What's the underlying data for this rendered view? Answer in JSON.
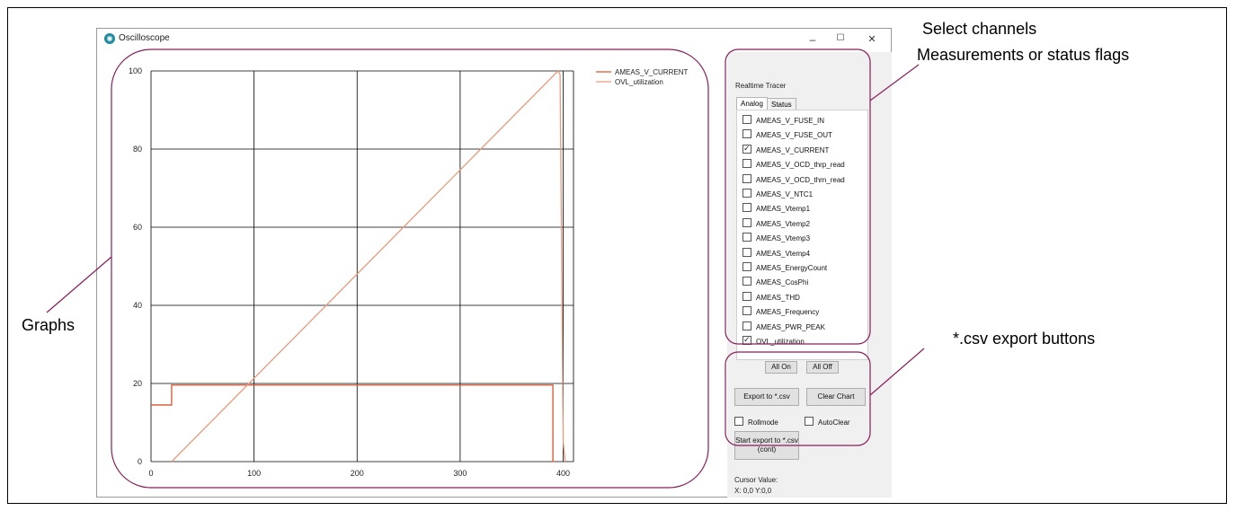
{
  "window": {
    "title": "Oscilloscope",
    "minimize": "–",
    "maximize": "☐",
    "close": "✕"
  },
  "chart_data": {
    "type": "line",
    "xlim": [
      0,
      410
    ],
    "ylim": [
      0,
      100
    ],
    "xticks": [
      0,
      100,
      200,
      300,
      400
    ],
    "yticks": [
      0,
      20,
      40,
      60,
      80,
      100
    ],
    "grid": true,
    "legend_position": "top-right",
    "series": [
      {
        "name": "AMEAS_V_CURRENT",
        "color": "#d9532c",
        "x": [
          0,
          20,
          20,
          390,
          390,
          392
        ],
        "y": [
          14.5,
          14.5,
          19.6,
          19.6,
          0,
          0
        ]
      },
      {
        "name": "OVL_utilization",
        "color": "#ea9a7a",
        "x": [
          20,
          395,
          397,
          400,
          402
        ],
        "y": [
          0,
          100,
          99,
          5,
          0
        ]
      }
    ]
  },
  "panel": {
    "group_label": "Realtime Tracer",
    "tabs": [
      "Analog",
      "Status"
    ],
    "channels": [
      {
        "label": "AMEAS_V_FUSE_IN",
        "checked": false
      },
      {
        "label": "AMEAS_V_FUSE_OUT",
        "checked": false
      },
      {
        "label": "AMEAS_V_CURRENT",
        "checked": true
      },
      {
        "label": "AMEAS_V_OCD_thrp_read",
        "checked": false
      },
      {
        "label": "AMEAS_V_OCD_thrn_read",
        "checked": false
      },
      {
        "label": "AMEAS_V_NTC1",
        "checked": false
      },
      {
        "label": "AMEAS_Vtemp1",
        "checked": false
      },
      {
        "label": "AMEAS_Vtemp2",
        "checked": false
      },
      {
        "label": "AMEAS_Vtemp3",
        "checked": false
      },
      {
        "label": "AMEAS_Vtemp4",
        "checked": false
      },
      {
        "label": "AMEAS_EnergyCount",
        "checked": false
      },
      {
        "label": "AMEAS_CosPhi",
        "checked": false
      },
      {
        "label": "AMEAS_THD",
        "checked": false
      },
      {
        "label": "AMEAS_Frequency",
        "checked": false
      },
      {
        "label": "AMEAS_PWR_PEAK",
        "checked": false
      },
      {
        "label": "OVL_utilization",
        "checked": true
      }
    ],
    "all_on": "All On",
    "all_off": "All Off",
    "export_csv": "Export to *.csv",
    "clear_chart": "Clear Chart",
    "rollmode": "Rollmode",
    "autoclear": "AutoClear",
    "start_export": "Start export to *.csv (cont)",
    "cursor_label": "Cursor Value:",
    "cursor_value": "X: 0,0 Y:0,0"
  },
  "annotations": {
    "select_channels": "Select channels",
    "measurements": "Measurements or status flags",
    "graphs": "Graphs",
    "csv_buttons": "*.csv export buttons"
  },
  "colors": {
    "callout": "#8a1c5a",
    "series1": "#d9532c",
    "series2": "#ea9a7a"
  }
}
